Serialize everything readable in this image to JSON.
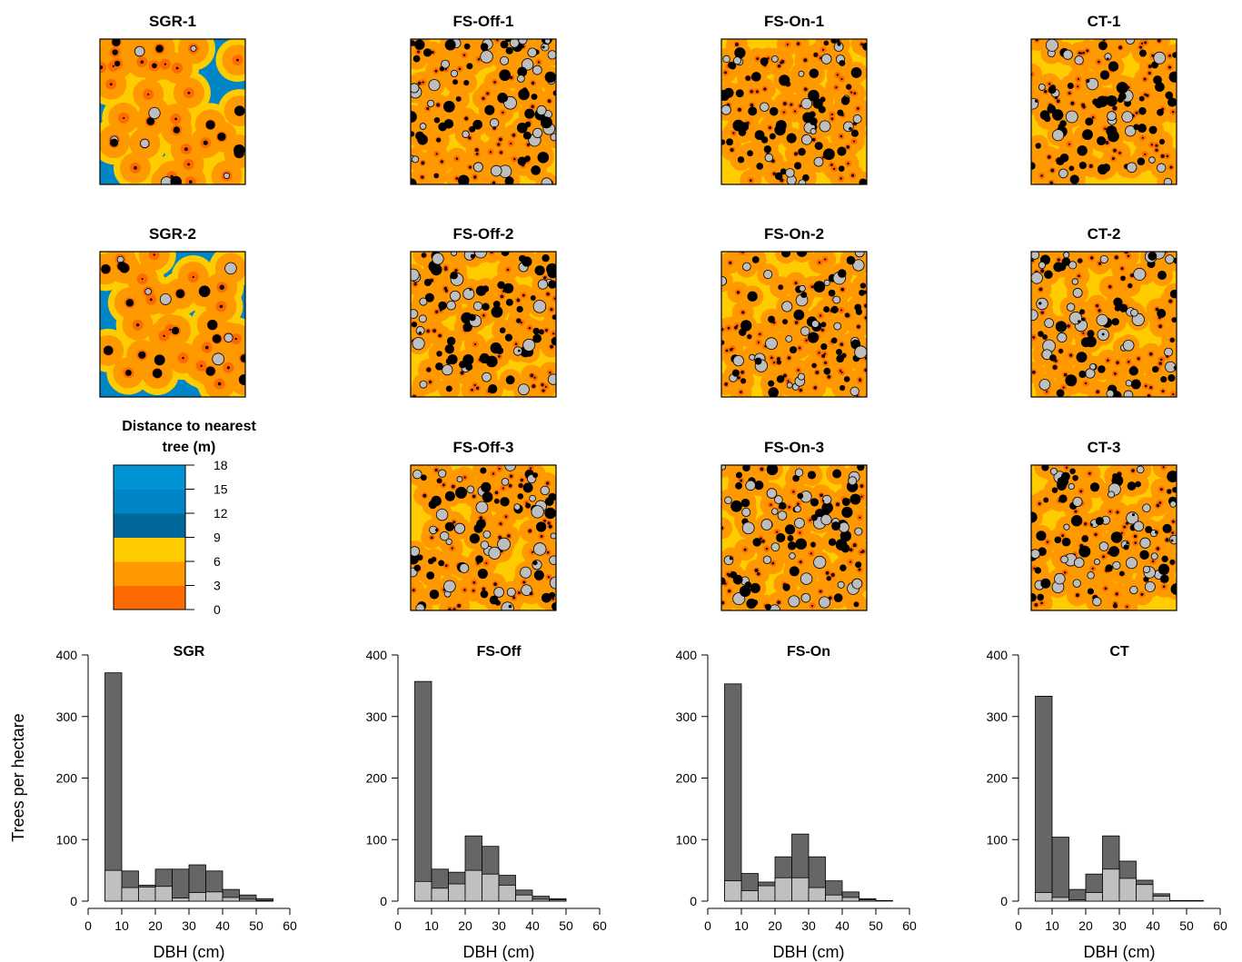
{
  "colors": {
    "dist_0_3": "#ff6a00",
    "dist_3_6": "#ff9900",
    "dist_6_9": "#ffcc00",
    "dist_9_12": "#00689a",
    "dist_12_15": "#0086c6",
    "dist_15_18": "#0094d6",
    "stem_large": "#000000",
    "stem_small_fill": "#bebebe",
    "bar_total": "#666666",
    "bar_subset": "#c0c0c0"
  },
  "maps": {
    "titles": [
      "SGR-1",
      "FS-Off-1",
      "FS-On-1",
      "CT-1",
      "SGR-2",
      "FS-Off-2",
      "FS-On-2",
      "CT-2",
      "FS-Off-3",
      "FS-On-3",
      "CT-3"
    ]
  },
  "legend": {
    "title_line1": "Distance to nearest",
    "title_line2": "tree (m)",
    "ticks": [
      "0",
      "3",
      "6",
      "9",
      "12",
      "15",
      "18"
    ]
  },
  "chart_data": [
    {
      "type": "bar",
      "title": "SGR",
      "xlabel": "DBH (cm)",
      "ylabel": "Trees per hectare",
      "bin_edges": [
        5,
        10,
        15,
        20,
        25,
        30,
        35,
        40,
        45,
        50,
        55,
        60
      ],
      "series": [
        {
          "values": [
            371,
            49,
            26,
            52,
            52,
            59,
            49,
            19,
            10,
            4,
            0
          ]
        },
        {
          "values": [
            50,
            22,
            23,
            24,
            5,
            14,
            15,
            6,
            3,
            1,
            0
          ]
        }
      ],
      "xlim": [
        0,
        60
      ],
      "ylim": [
        0,
        400
      ],
      "xticks": [
        "0",
        "10",
        "20",
        "30",
        "40",
        "50",
        "60"
      ],
      "yticks": [
        "0",
        "100",
        "200",
        "300",
        "400"
      ]
    },
    {
      "type": "bar",
      "title": "FS-Off",
      "xlabel": "DBH (cm)",
      "ylabel": "",
      "bin_edges": [
        5,
        10,
        15,
        20,
        25,
        30,
        35,
        40,
        45,
        50,
        55,
        60
      ],
      "series": [
        {
          "values": [
            357,
            52,
            47,
            106,
            89,
            42,
            18,
            8,
            4,
            0,
            0
          ]
        },
        {
          "values": [
            32,
            21,
            28,
            50,
            44,
            26,
            10,
            3,
            2,
            0,
            0
          ]
        }
      ],
      "xlim": [
        0,
        60
      ],
      "ylim": [
        0,
        400
      ],
      "xticks": [
        "0",
        "10",
        "20",
        "30",
        "40",
        "50",
        "60"
      ],
      "yticks": [
        "0",
        "100",
        "200",
        "300",
        "400"
      ]
    },
    {
      "type": "bar",
      "title": "FS-On",
      "xlabel": "DBH (cm)",
      "ylabel": "",
      "bin_edges": [
        5,
        10,
        15,
        20,
        25,
        30,
        35,
        40,
        45,
        50,
        55,
        60
      ],
      "series": [
        {
          "values": [
            353,
            45,
            31,
            72,
            109,
            72,
            33,
            15,
            4,
            1,
            0
          ]
        },
        {
          "values": [
            33,
            17,
            25,
            38,
            38,
            22,
            10,
            6,
            2,
            0,
            0
          ]
        }
      ],
      "xlim": [
        0,
        60
      ],
      "ylim": [
        0,
        400
      ],
      "xticks": [
        "0",
        "10",
        "20",
        "30",
        "40",
        "50",
        "60"
      ],
      "yticks": [
        "0",
        "100",
        "200",
        "300",
        "400"
      ]
    },
    {
      "type": "bar",
      "title": "CT",
      "xlabel": "DBH (cm)",
      "ylabel": "",
      "bin_edges": [
        5,
        10,
        15,
        20,
        25,
        30,
        35,
        40,
        45,
        50,
        55,
        60
      ],
      "series": [
        {
          "values": [
            333,
            104,
            19,
            44,
            106,
            65,
            34,
            12,
            1,
            1,
            0
          ]
        },
        {
          "values": [
            14,
            6,
            2,
            14,
            52,
            37,
            27,
            8,
            0,
            0,
            0
          ]
        }
      ],
      "xlim": [
        0,
        60
      ],
      "ylim": [
        0,
        400
      ],
      "xticks": [
        "0",
        "10",
        "20",
        "30",
        "40",
        "50",
        "60"
      ],
      "yticks": [
        "0",
        "100",
        "200",
        "300",
        "400"
      ]
    }
  ]
}
